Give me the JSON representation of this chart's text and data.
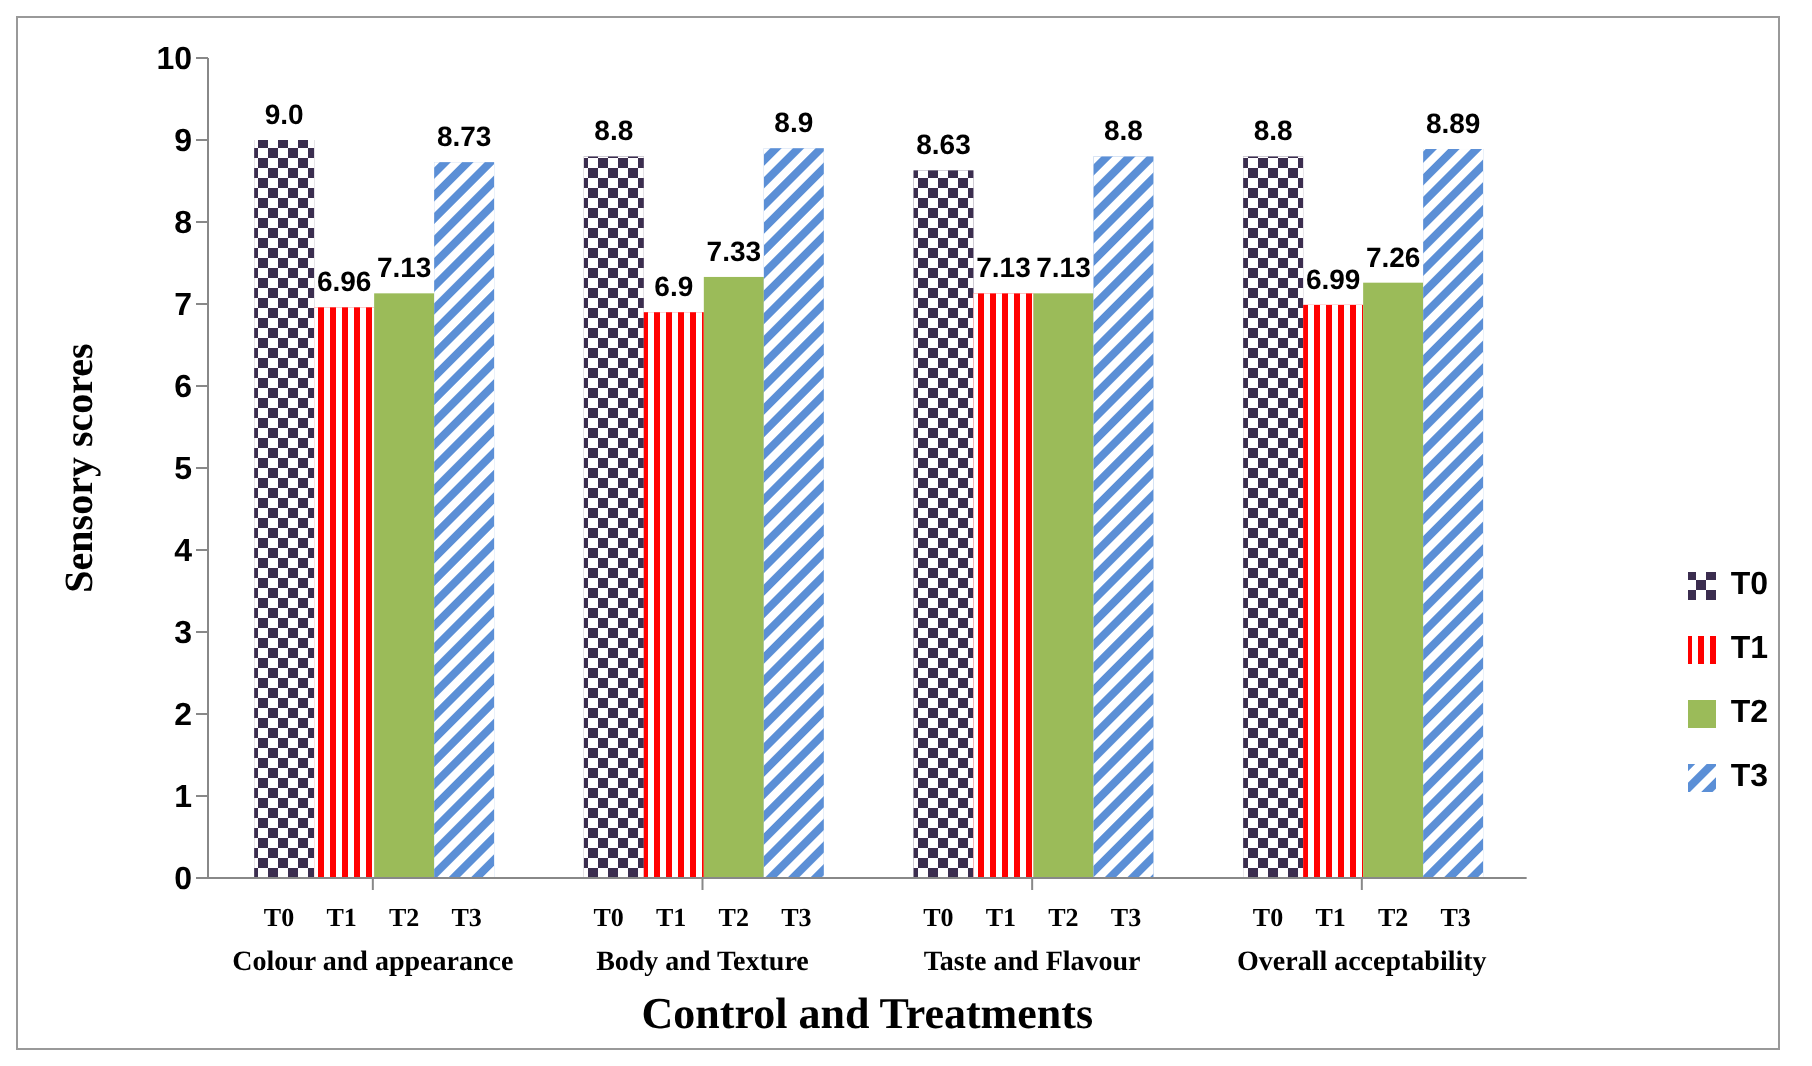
{
  "chart_data": {
    "type": "bar",
    "xlabel": "Control and Treatments",
    "ylabel": "Sensory scores",
    "categories": [
      "Colour and appearance",
      "Body and Texture",
      "Taste and Flavour",
      "Overall acceptability"
    ],
    "series": [
      {
        "name": "T0",
        "color": "#3b2d4f",
        "values": [
          9.0,
          8.8,
          8.63,
          8.8
        ],
        "value_labels": [
          "9.0",
          "8.8",
          "8.63",
          "8.8"
        ]
      },
      {
        "name": "T1",
        "color": "#ff0000",
        "values": [
          6.96,
          6.9,
          7.13,
          6.99
        ],
        "value_labels": [
          "6.96",
          "6.9",
          "7.13",
          "6.99"
        ]
      },
      {
        "name": "T2",
        "color": "#9bbb59",
        "values": [
          7.13,
          7.33,
          7.13,
          7.26
        ],
        "value_labels": [
          "7.13",
          "7.33",
          "7.13",
          "7.26"
        ]
      },
      {
        "name": "T3",
        "color": "#5b8fd6",
        "values": [
          8.73,
          8.9,
          8.8,
          8.89
        ],
        "value_labels": [
          "8.73",
          "8.9",
          "8.8",
          "8.89"
        ]
      }
    ],
    "ylim": [
      0,
      10
    ],
    "yticks": [
      0,
      1,
      2,
      3,
      4,
      5,
      6,
      7,
      8,
      9,
      10
    ],
    "grid": false,
    "legend": "right"
  }
}
